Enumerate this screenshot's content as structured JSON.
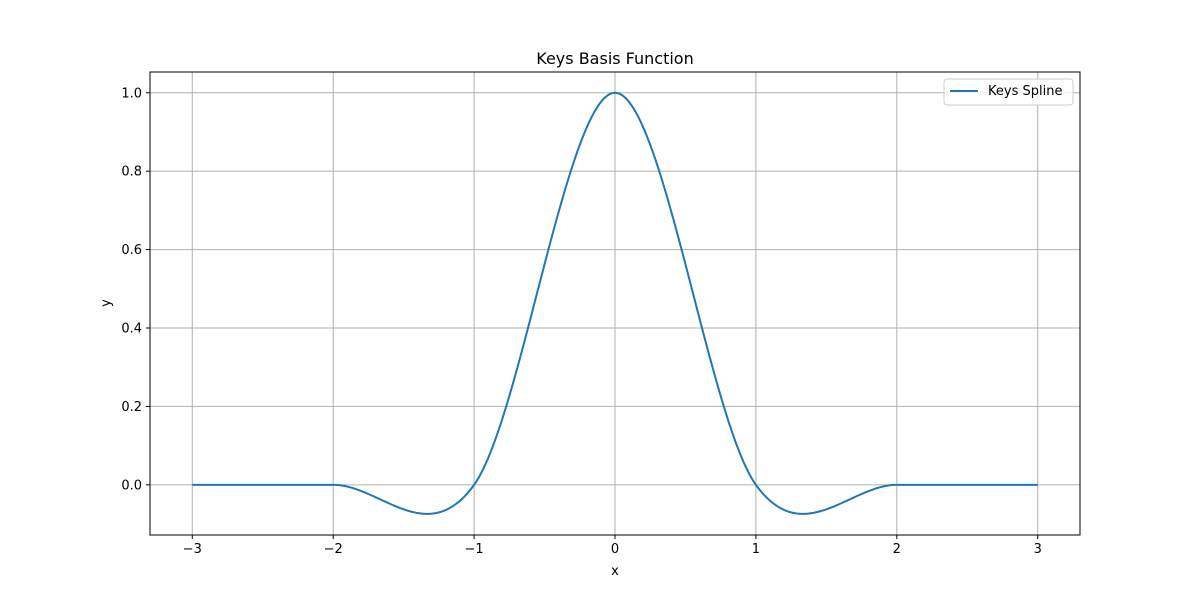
{
  "chart_data": {
    "type": "line",
    "title": "Keys Basis Function",
    "xlabel": "x",
    "ylabel": "y",
    "xlim": [
      -3.3,
      3.3
    ],
    "ylim": [
      -0.128,
      1.053
    ],
    "x_ticks": [
      -3,
      -2,
      -1,
      0,
      1,
      2,
      3
    ],
    "x_tick_labels": [
      "−3",
      "−2",
      "−1",
      "0",
      "1",
      "2",
      "3"
    ],
    "y_ticks": [
      0.0,
      0.2,
      0.4,
      0.6,
      0.8,
      1.0
    ],
    "y_tick_labels": [
      "0.0",
      "0.2",
      "0.4",
      "0.6",
      "0.8",
      "1.0"
    ],
    "grid": true,
    "legend_position": "top-right",
    "series": [
      {
        "name": "Keys Spline",
        "color": "#1f77b4",
        "x": [
          -3.0,
          -2.8,
          -2.6,
          -2.4,
          -2.2,
          -2.0,
          -1.8,
          -1.6,
          -1.4,
          -1.333,
          -1.2,
          -1.0,
          -0.8,
          -0.6,
          -0.4,
          -0.2,
          0.0,
          0.2,
          0.4,
          0.6,
          0.8,
          1.0,
          1.2,
          1.333,
          1.4,
          1.6,
          1.8,
          2.0,
          2.2,
          2.4,
          2.6,
          2.8,
          3.0
        ],
        "y": [
          0.0,
          0.0,
          0.0,
          0.0,
          0.0,
          0.0,
          -0.016,
          -0.048,
          -0.072,
          -0.074,
          -0.064,
          0.0,
          0.192,
          0.456,
          0.728,
          0.932,
          1.0,
          0.932,
          0.728,
          0.456,
          0.192,
          0.0,
          -0.064,
          -0.074,
          -0.072,
          -0.048,
          -0.016,
          0.0,
          0.0,
          0.0,
          0.0,
          0.0,
          0.0
        ]
      }
    ]
  }
}
